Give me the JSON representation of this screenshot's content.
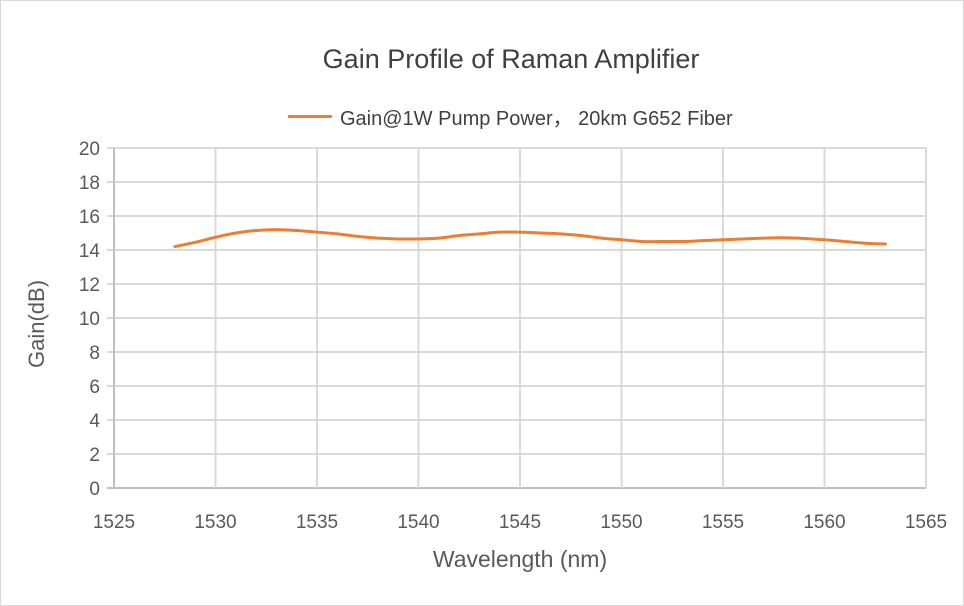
{
  "chart_data": {
    "type": "line",
    "title": "Gain Profile of Raman Amplifier",
    "xlabel": "Wavelength (nm)",
    "ylabel": "Gain(dB)",
    "xlim": [
      1525,
      1565
    ],
    "ylim": [
      0,
      20
    ],
    "x_ticks": [
      1525,
      1530,
      1535,
      1540,
      1545,
      1550,
      1555,
      1560,
      1565
    ],
    "y_ticks": [
      0,
      2,
      4,
      6,
      8,
      10,
      12,
      14,
      16,
      18,
      20
    ],
    "grid": true,
    "legend_position": "top",
    "series": [
      {
        "name": "Gain@1W Pump Power， 20km G652 Fiber",
        "color": "#ed7d31",
        "x": [
          1528,
          1529,
          1530,
          1531,
          1532,
          1533,
          1534,
          1535,
          1536,
          1537,
          1538,
          1539,
          1540,
          1541,
          1542,
          1543,
          1544,
          1545,
          1546,
          1547,
          1548,
          1549,
          1550,
          1551,
          1552,
          1553,
          1554,
          1555,
          1556,
          1557,
          1558,
          1559,
          1560,
          1561,
          1562,
          1563
        ],
        "y": [
          14.2,
          14.45,
          14.75,
          15.0,
          15.15,
          15.2,
          15.15,
          15.05,
          14.95,
          14.8,
          14.7,
          14.65,
          14.65,
          14.7,
          14.85,
          14.95,
          15.05,
          15.05,
          15.0,
          14.95,
          14.85,
          14.7,
          14.6,
          14.5,
          14.5,
          14.5,
          14.55,
          14.6,
          14.65,
          14.7,
          14.72,
          14.68,
          14.6,
          14.5,
          14.4,
          14.35
        ]
      }
    ]
  }
}
